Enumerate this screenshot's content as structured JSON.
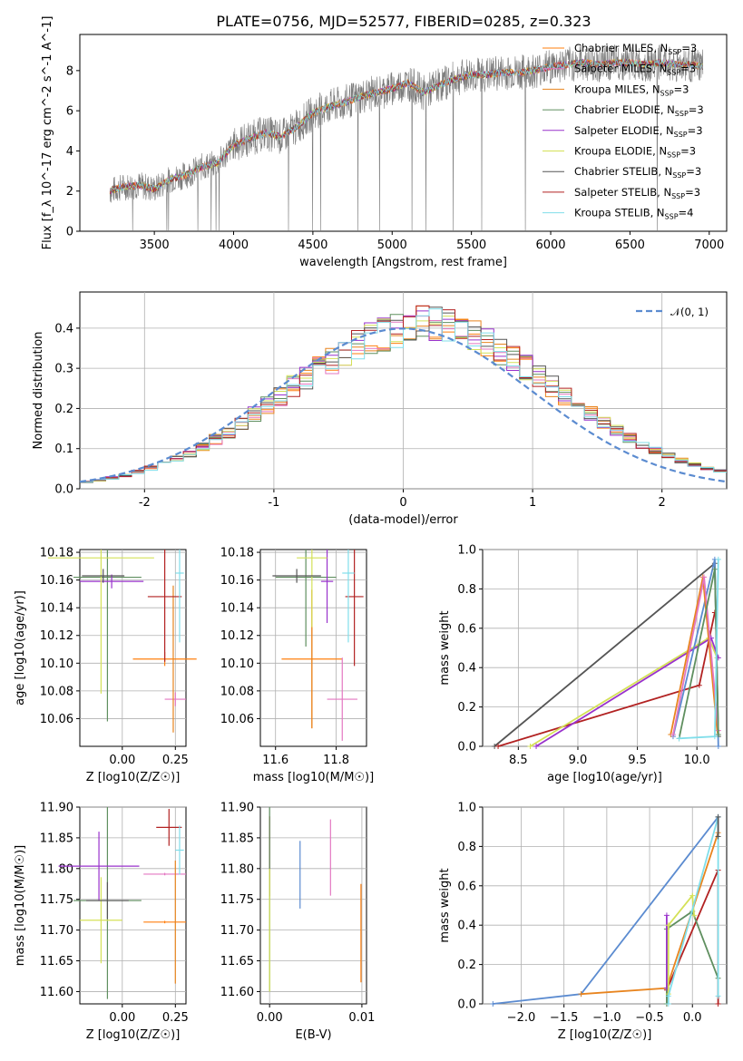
{
  "title": "PLATE=0756, MJD=52577, FIBERID=0285, z=0.323",
  "models": [
    {
      "name": "Chabrier MILES",
      "nssp": "3",
      "color": "#ff7f0e"
    },
    {
      "name": "Salpeter MILES",
      "nssp": "3",
      "color": "#e377c2"
    },
    {
      "name": "Kroupa MILES",
      "nssp": "3",
      "color": "#e8841e"
    },
    {
      "name": "Chabrier ELODIE",
      "nssp": "3",
      "color": "#5f8f5f"
    },
    {
      "name": "Salpeter ELODIE",
      "nssp": "3",
      "color": "#9932cc"
    },
    {
      "name": "Kroupa ELODIE",
      "nssp": "3",
      "color": "#d4e157"
    },
    {
      "name": "Chabrier STELIB",
      "nssp": "3",
      "color": "#555555"
    },
    {
      "name": "Salpeter STELIB",
      "nssp": "3",
      "color": "#b22222"
    },
    {
      "name": "Kroupa STELIB",
      "nssp": "4",
      "color": "#80deea"
    }
  ],
  "chart_data": [
    {
      "id": "spectrum",
      "type": "line",
      "xlabel": "wavelength [Angstrom, rest frame]",
      "ylabel": "Flux [f_λ 10^-17 erg cm^-2 s^-1 A^-1]",
      "xlim": [
        3030,
        7110
      ],
      "ylim": [
        0,
        9.8
      ],
      "xticks": [
        3500,
        4000,
        4500,
        5000,
        5500,
        6000,
        6500,
        7000
      ],
      "yticks": [
        0,
        2,
        4,
        6,
        8
      ],
      "continuum": [
        [
          3220,
          2.0
        ],
        [
          3300,
          2.2
        ],
        [
          3400,
          2.3
        ],
        [
          3500,
          2.1
        ],
        [
          3600,
          2.6
        ],
        [
          3700,
          2.8
        ],
        [
          3800,
          3.2
        ],
        [
          3900,
          3.4
        ],
        [
          4000,
          4.3
        ],
        [
          4100,
          4.6
        ],
        [
          4200,
          4.9
        ],
        [
          4300,
          4.7
        ],
        [
          4400,
          5.2
        ],
        [
          4500,
          5.9
        ],
        [
          4600,
          6.2
        ],
        [
          4700,
          6.4
        ],
        [
          4800,
          6.7
        ],
        [
          4900,
          6.9
        ],
        [
          5000,
          7.1
        ],
        [
          5100,
          7.4
        ],
        [
          5200,
          6.9
        ],
        [
          5300,
          7.3
        ],
        [
          5400,
          7.6
        ],
        [
          5500,
          7.8
        ],
        [
          5600,
          7.8
        ],
        [
          5700,
          7.9
        ],
        [
          5800,
          7.9
        ],
        [
          5900,
          8.0
        ],
        [
          6000,
          8.2
        ],
        [
          6100,
          8.3
        ],
        [
          6200,
          8.4
        ],
        [
          6300,
          8.3
        ],
        [
          6400,
          8.4
        ],
        [
          6500,
          8.4
        ],
        [
          6600,
          8.3
        ],
        [
          6700,
          8.4
        ],
        [
          6800,
          8.3
        ],
        [
          6900,
          8.3
        ],
        [
          6960,
          8.2
        ]
      ]
    },
    {
      "id": "residuals",
      "type": "histogram",
      "xlabel": "(data-model)/error",
      "ylabel": "Normed distribution",
      "xlim": [
        -2.5,
        2.5
      ],
      "ylim": [
        0,
        0.49
      ],
      "xticks": [
        -2,
        -1,
        0,
        1,
        2
      ],
      "yticks": [
        0.0,
        0.1,
        0.2,
        0.3,
        0.4
      ],
      "legend": "𝒩(0, 1)",
      "reference_color": "#5b8bd0"
    },
    {
      "id": "age-vs-Z",
      "type": "scatter",
      "xlabel": "Z [log10(Z/Z☉)]",
      "ylabel": "age [log10(age/yr)]",
      "xlim": [
        -0.2,
        0.3
      ],
      "ylim": [
        10.04,
        10.182
      ],
      "xticks": [
        0.0,
        0.25
      ],
      "xticklabels": [
        "0.00",
        "0.25"
      ],
      "yticks": [
        10.06,
        10.08,
        10.1,
        10.12,
        10.14,
        10.16,
        10.18
      ],
      "points": [
        {
          "x": 0.2,
          "y": 10.103,
          "xerr": 0.15,
          "yerr": 0.005,
          "color": "#ff7f0e"
        },
        {
          "x": 0.25,
          "y": 10.074,
          "xerr": 0.05,
          "yerr": 0.005,
          "color": "#e377c2"
        },
        {
          "x": 0.24,
          "y": 10.103,
          "xerr": 0.002,
          "yerr": 0.053,
          "color": "#e8841e"
        },
        {
          "x": -0.07,
          "y": 10.162,
          "xerr": 0.16,
          "yerr": 0.104,
          "color": "#5f8f5f"
        },
        {
          "x": -0.05,
          "y": 10.159,
          "xerr": 0.15,
          "yerr": 0.005,
          "color": "#9932cc"
        },
        {
          "x": -0.1,
          "y": 10.176,
          "xerr": 0.25,
          "yerr": 0.098,
          "color": "#d4e157"
        },
        {
          "x": -0.09,
          "y": 10.163,
          "xerr": 0.1,
          "yerr": 0.005,
          "color": "#555555"
        },
        {
          "x": 0.2,
          "y": 10.148,
          "xerr": 0.08,
          "yerr": 0.047,
          "color": "#b22222"
        },
        {
          "x": 0.27,
          "y": 10.165,
          "xerr": 0.02,
          "yerr": 0.05,
          "color": "#80deea"
        }
      ]
    },
    {
      "id": "age-vs-mass",
      "type": "scatter",
      "xlabel": "mass [log10(M/M☉)]",
      "ylabel": "",
      "xlim": [
        11.55,
        11.9
      ],
      "ylim": [
        10.04,
        10.182
      ],
      "xticks": [
        11.6,
        11.8
      ],
      "xticklabels": [
        "11.6",
        "11.8"
      ],
      "yticks": [
        10.06,
        10.08,
        10.1,
        10.12,
        10.14,
        10.16,
        10.18
      ],
      "points": [
        {
          "x": 11.72,
          "y": 10.103,
          "xerr": 0.1,
          "yerr": 0.05,
          "color": "#ff7f0e"
        },
        {
          "x": 11.82,
          "y": 10.074,
          "xerr": 0.05,
          "yerr": 0.03,
          "color": "#e377c2"
        },
        {
          "x": 11.72,
          "y": 10.103,
          "xerr": 0.002,
          "yerr": 0.05,
          "color": "#e8841e"
        },
        {
          "x": 11.7,
          "y": 10.162,
          "xerr": 0.1,
          "yerr": 0.05,
          "color": "#5f8f5f"
        },
        {
          "x": 11.77,
          "y": 10.159,
          "xerr": 0.02,
          "yerr": 0.03,
          "color": "#9932cc"
        },
        {
          "x": 11.72,
          "y": 10.176,
          "xerr": 0.05,
          "yerr": 0.05,
          "color": "#d4e157"
        },
        {
          "x": 11.67,
          "y": 10.163,
          "xerr": 0.08,
          "yerr": 0.005,
          "color": "#555555"
        },
        {
          "x": 11.86,
          "y": 10.148,
          "xerr": 0.03,
          "yerr": 0.05,
          "color": "#b22222"
        },
        {
          "x": 11.84,
          "y": 10.165,
          "xerr": 0.02,
          "yerr": 0.05,
          "color": "#80deea"
        }
      ]
    },
    {
      "id": "massweight-vs-age",
      "type": "line",
      "xlabel": "age [log10(age/yr)]",
      "ylabel": "mass weight",
      "xlim": [
        8.2,
        10.25
      ],
      "ylim": [
        0,
        1.0
      ],
      "xticks": [
        8.5,
        9.0,
        9.5,
        10.0
      ],
      "xticklabels": [
        "8.5",
        "9.0",
        "9.5",
        "10.0"
      ],
      "yticks": [
        0.0,
        0.2,
        0.4,
        0.6,
        0.8,
        1.0
      ],
      "series": [
        {
          "color": "#555555",
          "x": [
            8.3,
            10.15,
            10.18
          ],
          "y": [
            0.0,
            0.93,
            0.05
          ]
        },
        {
          "color": "#b22222",
          "x": [
            8.33,
            10.02,
            10.15
          ],
          "y": [
            0.0,
            0.31,
            0.68
          ]
        },
        {
          "color": "#d4e157",
          "x": [
            8.6,
            10.1,
            10.17
          ],
          "y": [
            0.0,
            0.55,
            0.45
          ]
        },
        {
          "color": "#9932cc",
          "x": [
            8.65,
            10.12,
            10.18
          ],
          "y": [
            0.0,
            0.55,
            0.45
          ]
        },
        {
          "color": "#5b8bd0",
          "x": [
            9.8,
            10.15,
            10.18
          ],
          "y": [
            0.05,
            0.95,
            0.0
          ]
        },
        {
          "color": "#e8841e",
          "x": [
            9.78,
            10.05,
            10.17
          ],
          "y": [
            0.06,
            0.86,
            0.08
          ]
        },
        {
          "color": "#e377c2",
          "x": [
            9.8,
            10.06,
            10.18
          ],
          "y": [
            0.06,
            0.86,
            0.08
          ]
        },
        {
          "color": "#5f8f5f",
          "x": [
            9.85,
            10.15,
            10.18
          ],
          "y": [
            0.04,
            0.9,
            0.06
          ]
        },
        {
          "color": "#80deea",
          "x": [
            9.85,
            10.15,
            10.18
          ],
          "y": [
            0.04,
            0.05,
            0.95
          ]
        }
      ]
    },
    {
      "id": "mass-vs-Z",
      "type": "scatter",
      "xlabel": "Z [log10(Z/Z☉)]",
      "ylabel": "mass [log10(M/M☉)]",
      "xlim": [
        -0.2,
        0.3
      ],
      "ylim": [
        11.58,
        11.9
      ],
      "xticks": [
        0.0,
        0.25
      ],
      "xticklabels": [
        "0.00",
        "0.25"
      ],
      "yticks": [
        11.6,
        11.65,
        11.7,
        11.75,
        11.8,
        11.85,
        11.9
      ],
      "points": [
        {
          "x": 0.2,
          "y": 11.713,
          "xerr": 0.1,
          "yerr": 0.002,
          "color": "#ff7f0e"
        },
        {
          "x": 0.2,
          "y": 11.791,
          "xerr": 0.1,
          "yerr": 0.002,
          "color": "#e377c2"
        },
        {
          "x": 0.25,
          "y": 11.713,
          "xerr": 0.002,
          "yerr": 0.1,
          "color": "#e8841e"
        },
        {
          "x": -0.07,
          "y": 11.748,
          "xerr": 0.16,
          "yerr": 0.16,
          "color": "#5f8f5f"
        },
        {
          "x": -0.11,
          "y": 11.804,
          "xerr": 0.19,
          "yerr": 0.056,
          "color": "#9932cc"
        },
        {
          "x": -0.1,
          "y": 11.716,
          "xerr": 0.1,
          "yerr": 0.07,
          "color": "#d4e157"
        },
        {
          "x": -0.07,
          "y": 11.748,
          "xerr": 0.1,
          "yerr": 0.03,
          "color": "#555555"
        },
        {
          "x": 0.22,
          "y": 11.867,
          "xerr": 0.06,
          "yerr": 0.03,
          "color": "#b22222"
        },
        {
          "x": 0.27,
          "y": 11.83,
          "xerr": 0.02,
          "yerr": 0.04,
          "color": "#80deea"
        }
      ]
    },
    {
      "id": "mass-vs-ebv",
      "type": "scatter",
      "xlabel": "E(B-V)",
      "ylabel": "",
      "xlim": [
        -0.001,
        0.0105
      ],
      "ylim": [
        11.58,
        11.9
      ],
      "xticks": [
        0.0,
        0.01
      ],
      "xticklabels": [
        "0.00",
        "0.01"
      ],
      "yticks": [
        11.6,
        11.65,
        11.7,
        11.75,
        11.8,
        11.85,
        11.9
      ],
      "points": [
        {
          "x": 0.0,
          "y": 11.82,
          "xerr": 0,
          "yerr": 0.065,
          "color": "#b22222"
        },
        {
          "x": 0.0,
          "y": 11.75,
          "xerr": 0,
          "yerr": 0.15,
          "color": "#5f8f5f"
        },
        {
          "x": 0.0,
          "y": 11.7,
          "xerr": 0,
          "yerr": 0.1,
          "color": "#d4e157"
        },
        {
          "x": 0.0033,
          "y": 11.79,
          "xerr": 0,
          "yerr": 0.055,
          "color": "#5b8bd0"
        },
        {
          "x": 0.0066,
          "y": 11.818,
          "xerr": 0,
          "yerr": 0.062,
          "color": "#e377c2"
        },
        {
          "x": 0.0099,
          "y": 11.695,
          "xerr": 0,
          "yerr": 0.08,
          "color": "#ff7f0e"
        }
      ]
    },
    {
      "id": "massweight-vs-Z",
      "type": "line",
      "xlabel": "Z [log10(Z/Z☉)]",
      "ylabel": "mass weight",
      "xlim": [
        -2.45,
        0.4
      ],
      "ylim": [
        0,
        1.0
      ],
      "xticks": [
        -2.0,
        -1.5,
        -1.0,
        -0.5,
        0.0
      ],
      "xticklabels": [
        "−2.0",
        "−1.5",
        "−1.0",
        "−0.5",
        "0.0"
      ],
      "yticks": [
        0.0,
        0.2,
        0.4,
        0.6,
        0.8,
        1.0
      ],
      "series": [
        {
          "color": "#5b8bd0",
          "x": [
            -2.33,
            -1.3,
            0.3
          ],
          "y": [
            0.0,
            0.05,
            0.95
          ]
        },
        {
          "color": "#e8841e",
          "x": [
            -1.3,
            -0.3,
            0.3
          ],
          "y": [
            0.05,
            0.08,
            0.87
          ]
        },
        {
          "color": "#b22222",
          "x": [
            -0.3,
            -0.3,
            0.3,
            0.3
          ],
          "y": [
            0.0,
            0.07,
            0.68,
            0.0
          ]
        },
        {
          "color": "#5f8f5f",
          "x": [
            -0.3,
            -0.3,
            0.0,
            0.3
          ],
          "y": [
            0.0,
            0.38,
            0.47,
            0.13
          ]
        },
        {
          "color": "#9932cc",
          "x": [
            -0.3,
            -0.3
          ],
          "y": [
            0.08,
            0.45
          ]
        },
        {
          "color": "#d4e157",
          "x": [
            -0.28,
            -0.28,
            0.0,
            0.02
          ],
          "y": [
            0.05,
            0.4,
            0.55,
            0.45
          ]
        },
        {
          "color": "#80deea",
          "x": [
            -0.28,
            -0.28,
            0.3,
            0.3
          ],
          "y": [
            0.0,
            0.04,
            0.95,
            0.04
          ]
        },
        {
          "color": "#555555",
          "x": [
            0.3,
            0.3
          ],
          "y": [
            0.85,
            0.95
          ]
        }
      ]
    }
  ]
}
